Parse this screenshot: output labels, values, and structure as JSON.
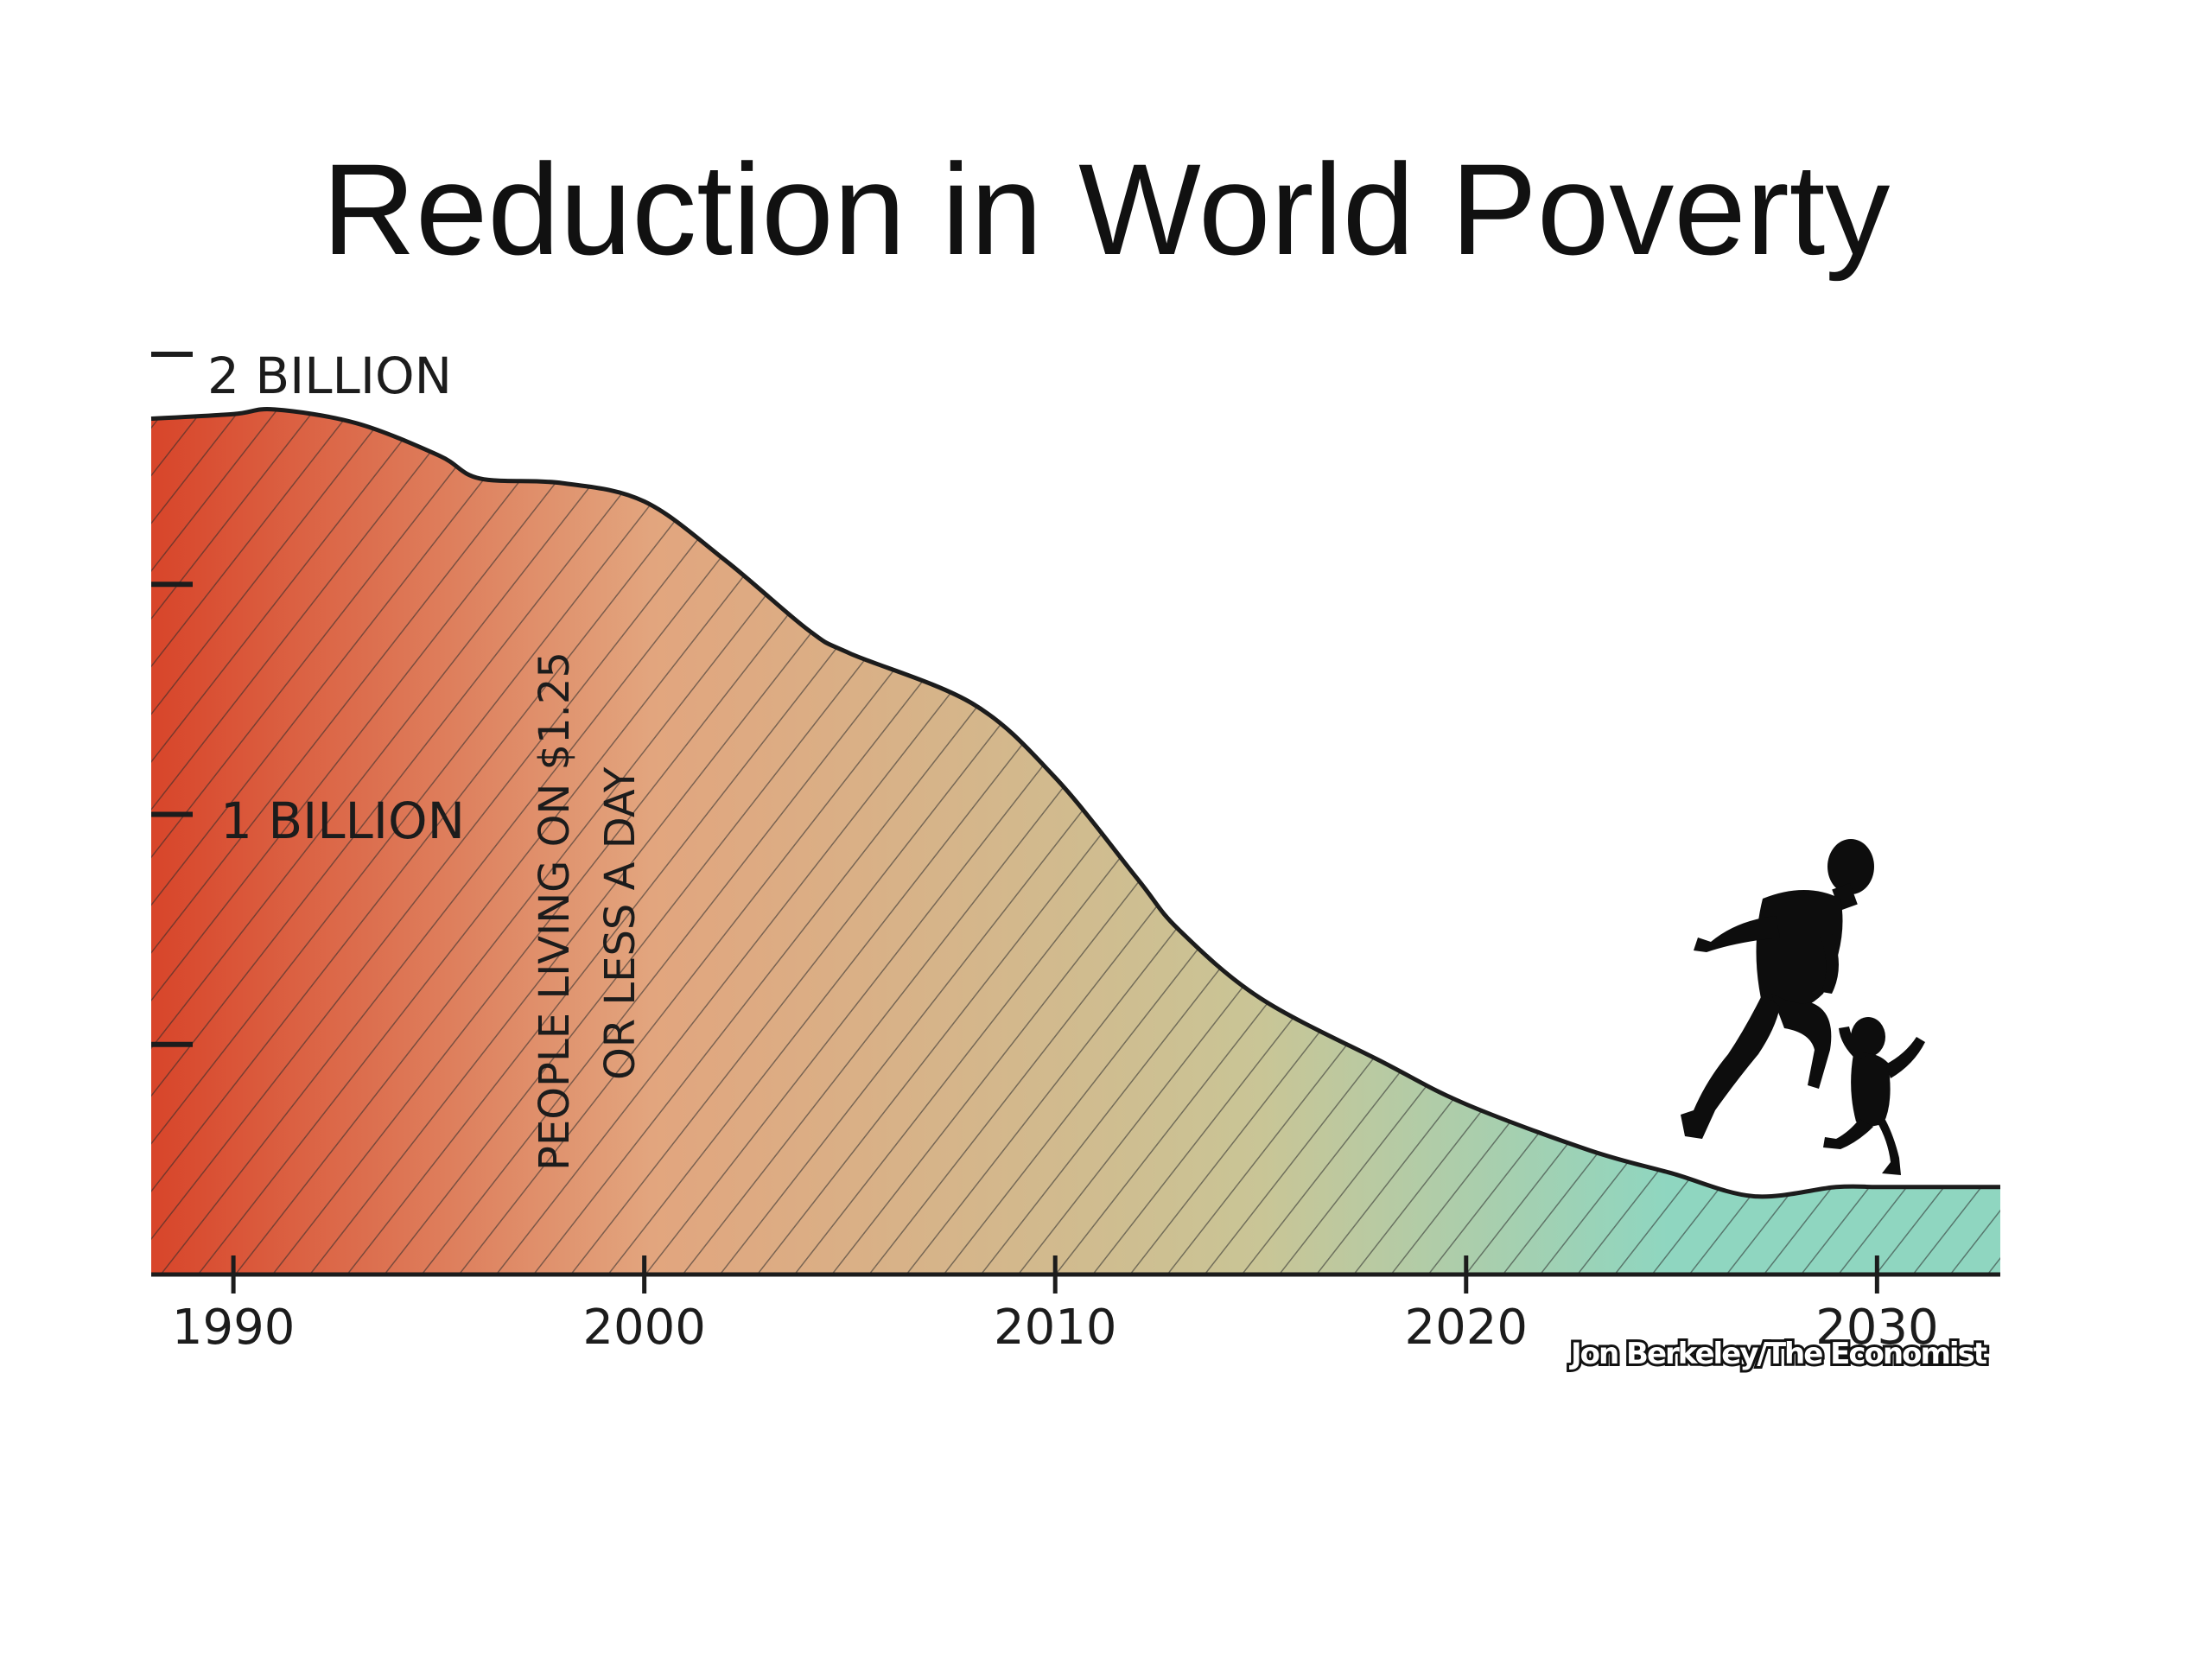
{
  "slide": {
    "title": "Reduction in World Poverty"
  },
  "chart_data": {
    "type": "area",
    "title": "Reduction in World Poverty",
    "x_ticks": [
      "1990",
      "2000",
      "2010",
      "2020",
      "2030"
    ],
    "y_tick_labels": [
      "2 BILLION",
      "1 BILLION"
    ],
    "y_ticks": [
      0.5,
      1.0,
      1.5,
      2.0
    ],
    "xlim": [
      1988,
      2033
    ],
    "ylim": [
      0,
      2.0
    ],
    "series_label_lines": [
      "PEOPLE LIVING ON $1.25",
      "OR LESS A DAY"
    ],
    "credit": "Jon Berkeley/The Economist",
    "series": [
      {
        "x": [
          1988,
          1990,
          1991,
          1993,
          1995,
          1996,
          1998,
          2000,
          2002,
          2004,
          2005,
          2008,
          2010,
          2012,
          2013,
          2015,
          2018,
          2020,
          2023,
          2025,
          2027,
          2029,
          2030,
          2031,
          2033
        ],
        "values": [
          1.86,
          1.87,
          1.88,
          1.85,
          1.78,
          1.73,
          1.72,
          1.68,
          1.55,
          1.4,
          1.35,
          1.24,
          1.08,
          0.86,
          0.75,
          0.6,
          0.46,
          0.37,
          0.27,
          0.22,
          0.17,
          0.19,
          0.19,
          0.19,
          0.19
        ]
      }
    ],
    "colors": {
      "start": "#d8452a",
      "middle": "#e2a57e",
      "late": "#c9c596",
      "end": "#8fd6c0",
      "outline": "#1c1c1c"
    },
    "silhouettes": [
      "running-man-icon",
      "running-child-icon"
    ]
  }
}
